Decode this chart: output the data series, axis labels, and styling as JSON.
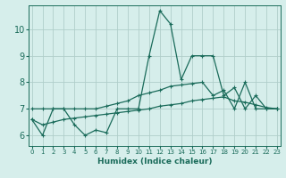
{
  "xlabel": "Humidex (Indice chaleur)",
  "bg_color": "#d6eeeb",
  "grid_color": "#b0ceca",
  "line_color": "#1a6b5a",
  "x_ticks": [
    0,
    1,
    2,
    3,
    4,
    5,
    6,
    7,
    8,
    9,
    10,
    11,
    12,
    13,
    14,
    15,
    16,
    17,
    18,
    19,
    20,
    21,
    22,
    23
  ],
  "ylim": [
    5.6,
    10.9
  ],
  "xlim": [
    -0.3,
    23.3
  ],
  "yticks": [
    6,
    7,
    8,
    9,
    10
  ],
  "series1_x": [
    0,
    1,
    2,
    3,
    4,
    5,
    6,
    7,
    8,
    9,
    10,
    11,
    12,
    13,
    14,
    15,
    16,
    17,
    18,
    19,
    20,
    21,
    22,
    23
  ],
  "series1_y": [
    6.6,
    6.0,
    7.0,
    7.0,
    6.4,
    6.0,
    6.2,
    6.1,
    7.0,
    7.0,
    7.0,
    9.0,
    10.7,
    10.2,
    8.1,
    9.0,
    9.0,
    9.0,
    7.5,
    7.8,
    7.0,
    7.5,
    7.0,
    7.0
  ],
  "series2_x": [
    0,
    1,
    2,
    3,
    4,
    5,
    6,
    7,
    8,
    9,
    10,
    11,
    12,
    13,
    14,
    15,
    16,
    17,
    18,
    19,
    20,
    21,
    22,
    23
  ],
  "series2_y": [
    7.0,
    7.0,
    7.0,
    7.0,
    7.0,
    7.0,
    7.0,
    7.1,
    7.2,
    7.3,
    7.5,
    7.6,
    7.7,
    7.85,
    7.9,
    7.95,
    8.0,
    7.5,
    7.7,
    7.0,
    8.0,
    7.0,
    7.0,
    7.0
  ],
  "series3_x": [
    0,
    1,
    2,
    3,
    4,
    5,
    6,
    7,
    8,
    9,
    10,
    11,
    12,
    13,
    14,
    15,
    16,
    17,
    18,
    19,
    20,
    21,
    22,
    23
  ],
  "series3_y": [
    6.6,
    6.4,
    6.5,
    6.6,
    6.65,
    6.7,
    6.75,
    6.8,
    6.85,
    6.9,
    6.95,
    7.0,
    7.1,
    7.15,
    7.2,
    7.3,
    7.35,
    7.4,
    7.45,
    7.3,
    7.25,
    7.15,
    7.05,
    7.0
  ]
}
